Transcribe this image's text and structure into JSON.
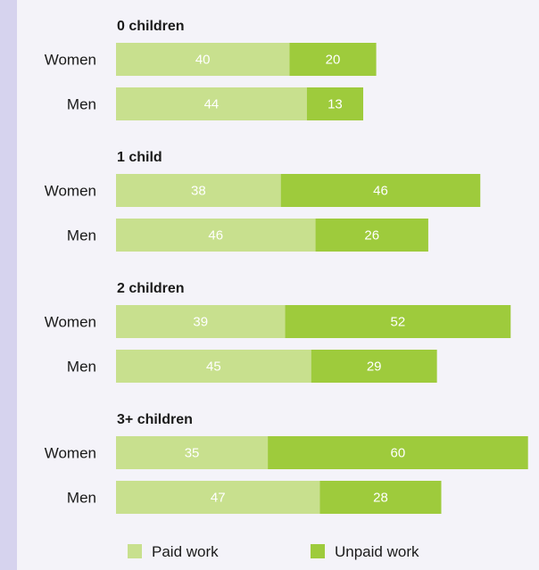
{
  "chart_data": {
    "type": "bar",
    "orientation": "horizontal",
    "stacked": true,
    "title": "",
    "xlabel": "",
    "ylabel": "",
    "xlim": [
      0,
      100
    ],
    "grid": false,
    "legend_position": "bottom",
    "series_names": [
      "Paid work",
      "Unpaid work"
    ],
    "colors": {
      "paid": "#c8e08e",
      "unpaid": "#9ecb3c"
    },
    "groups": [
      {
        "label": "0 children",
        "rows": [
          {
            "label": "Women",
            "paid": 40,
            "unpaid": 20
          },
          {
            "label": "Men",
            "paid": 44,
            "unpaid": 13
          }
        ]
      },
      {
        "label": "1 child",
        "rows": [
          {
            "label": "Women",
            "paid": 38,
            "unpaid": 46
          },
          {
            "label": "Men",
            "paid": 46,
            "unpaid": 26
          }
        ]
      },
      {
        "label": "2 children",
        "rows": [
          {
            "label": "Women",
            "paid": 39,
            "unpaid": 52
          },
          {
            "label": "Men",
            "paid": 45,
            "unpaid": 29
          }
        ]
      },
      {
        "label": "3+ children",
        "rows": [
          {
            "label": "Women",
            "paid": 35,
            "unpaid": 60
          },
          {
            "label": "Men",
            "paid": 47,
            "unpaid": 28
          }
        ]
      }
    ]
  }
}
